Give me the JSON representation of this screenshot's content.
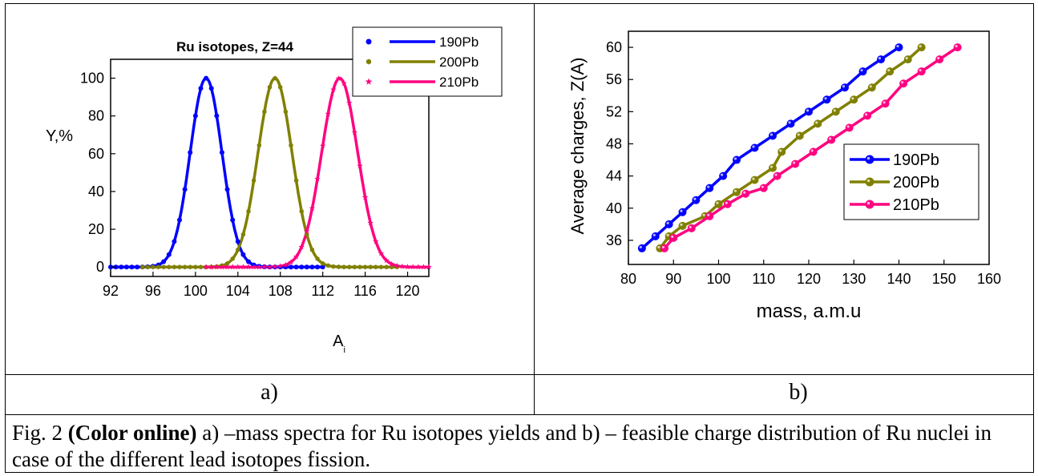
{
  "chart_data": [
    {
      "type": "scatter",
      "title": "Ru isotopes, Z=44",
      "xlabel": "A",
      "xlabel_sub": "i",
      "ylabel": "Y,%",
      "xlim": [
        92,
        122
      ],
      "ylim": [
        -5,
        110
      ],
      "xticks": [
        92,
        96,
        100,
        104,
        108,
        112,
        116,
        120
      ],
      "yticks": [
        0,
        20,
        40,
        60,
        80,
        100
      ],
      "legend_position": "top-right",
      "series": [
        {
          "name": "190Pb",
          "color": "#0000ff",
          "marker": "circle",
          "mu": 101.0,
          "sigma": 1.5,
          "x_start": 92,
          "x_end": 112
        },
        {
          "name": "200Pb",
          "color": "#808000",
          "marker": "hexagon",
          "mu": 107.5,
          "sigma": 1.6,
          "x_start": 95,
          "x_end": 119
        },
        {
          "name": "210Pb",
          "color": "#ff0080",
          "marker": "star",
          "mu": 113.6,
          "sigma": 1.7,
          "x_start": 101,
          "x_end": 122
        }
      ]
    },
    {
      "type": "line",
      "xlabel": "mass, a.m.u",
      "ylabel": "Average charges, Z(A)",
      "xlim": [
        80,
        160
      ],
      "ylim": [
        33,
        62
      ],
      "xticks": [
        80,
        90,
        100,
        110,
        120,
        130,
        140,
        150,
        160
      ],
      "yticks": [
        36,
        40,
        44,
        48,
        52,
        56,
        60
      ],
      "legend_position": "right",
      "series": [
        {
          "name": "190Pb",
          "color": "#0000ff",
          "points": [
            [
              83,
              35
            ],
            [
              86,
              36.5
            ],
            [
              89,
              38
            ],
            [
              92,
              39.5
            ],
            [
              95,
              41
            ],
            [
              98,
              42.5
            ],
            [
              101,
              44
            ],
            [
              104,
              46
            ],
            [
              108,
              47.5
            ],
            [
              112,
              49
            ],
            [
              116,
              50.5
            ],
            [
              120,
              52
            ],
            [
              124,
              53.5
            ],
            [
              128,
              55
            ],
            [
              132,
              57
            ],
            [
              136,
              58.5
            ],
            [
              140,
              60
            ]
          ]
        },
        {
          "name": "200Pb",
          "color": "#808000",
          "points": [
            [
              87,
              35
            ],
            [
              89,
              36.5
            ],
            [
              92,
              37.8
            ],
            [
              97,
              39
            ],
            [
              100,
              40.5
            ],
            [
              104,
              42
            ],
            [
              108,
              43.5
            ],
            [
              112,
              45
            ],
            [
              114,
              47
            ],
            [
              118,
              49
            ],
            [
              122,
              50.5
            ],
            [
              126,
              52
            ],
            [
              130,
              53.5
            ],
            [
              134,
              55
            ],
            [
              138,
              57
            ],
            [
              142,
              58.5
            ],
            [
              145,
              60
            ]
          ]
        },
        {
          "name": "210Pb",
          "color": "#ff0080",
          "points": [
            [
              88,
              35
            ],
            [
              90,
              36.3
            ],
            [
              94,
              37.5
            ],
            [
              98,
              39
            ],
            [
              102,
              40.5
            ],
            [
              106,
              41.8
            ],
            [
              110,
              42.5
            ],
            [
              113,
              44
            ],
            [
              117,
              45.5
            ],
            [
              121,
              47
            ],
            [
              125,
              48.5
            ],
            [
              129,
              50
            ],
            [
              133,
              51.5
            ],
            [
              137,
              53
            ],
            [
              141,
              55.5
            ],
            [
              145,
              57
            ],
            [
              149,
              58.5
            ],
            [
              153,
              60
            ]
          ]
        }
      ]
    }
  ],
  "panels": {
    "a_label": "a)",
    "b_label": "b)"
  },
  "caption": {
    "prefix": "Fig. 2 ",
    "bold": "(Color online)",
    "text": "  a) –mass spectra for Ru isotopes yields and b) – feasible charge distribution of Ru nuclei in case of the different lead isotopes fission."
  }
}
